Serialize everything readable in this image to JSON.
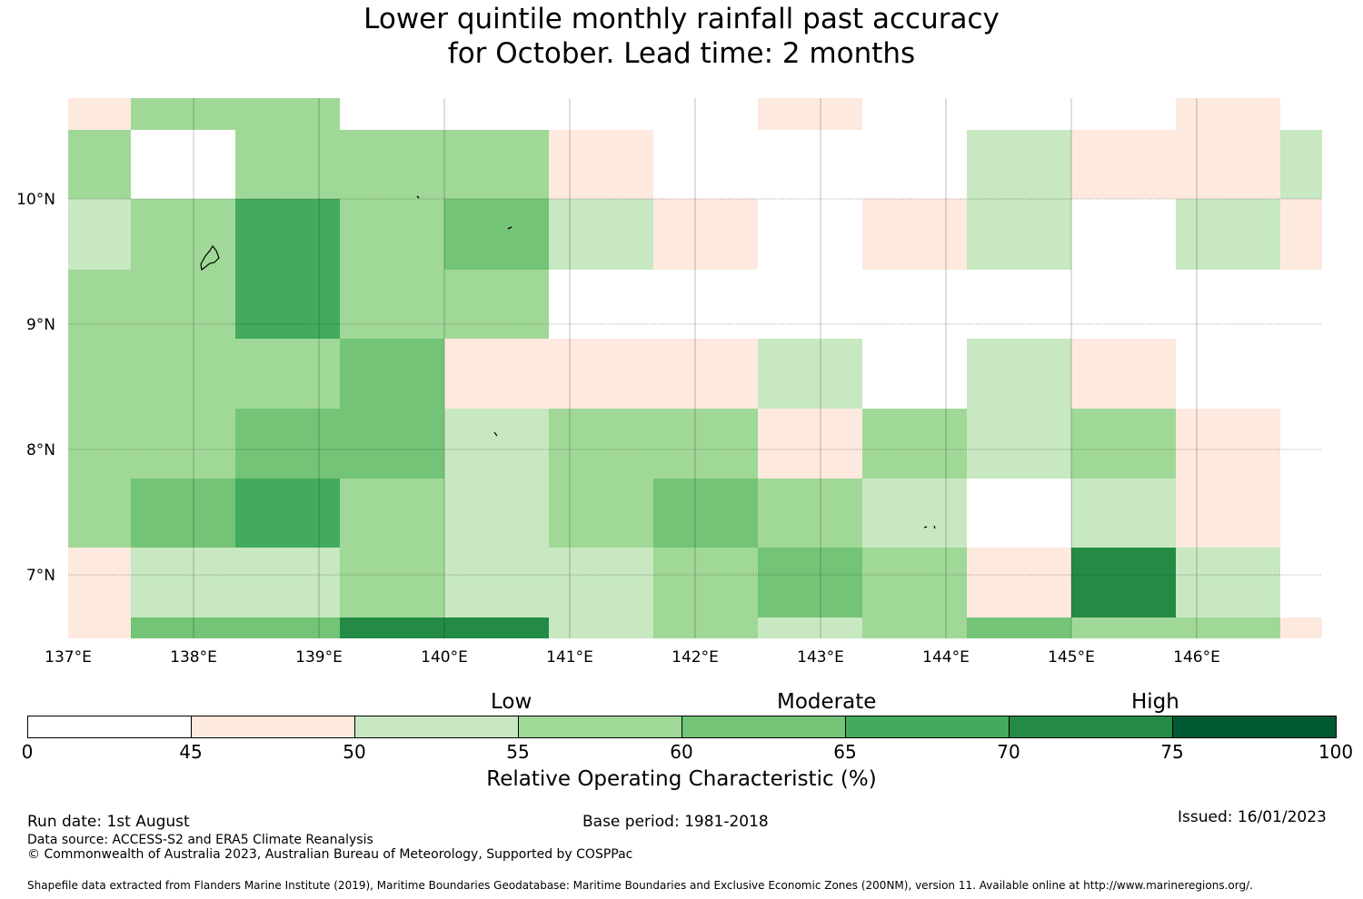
{
  "title": {
    "line1": "Lower quintile monthly rainfall past accuracy",
    "line2": "for October. Lead time: 2 months"
  },
  "map": {
    "lon_labels": [
      "137°E",
      "138°E",
      "139°E",
      "140°E",
      "141°E",
      "142°E",
      "143°E",
      "144°E",
      "145°E",
      "146°E"
    ],
    "lat_labels": [
      "10°N",
      "9°N",
      "8°N",
      "7°N"
    ],
    "category_colors": [
      "#ffffff",
      "#fee9df",
      "#c7e8c1",
      "#a0d897",
      "#73c476",
      "#42ab5d",
      "#238b45",
      "#005a32"
    ],
    "grid_cells_category": [
      [
        1,
        3,
        3,
        0,
        0,
        0,
        0,
        1,
        0,
        0,
        0,
        1,
        0
      ],
      [
        3,
        0,
        3,
        3,
        3,
        1,
        0,
        0,
        0,
        2,
        1,
        1,
        2
      ],
      [
        2,
        3,
        5,
        3,
        4,
        2,
        1,
        0,
        1,
        2,
        0,
        2,
        1
      ],
      [
        3,
        3,
        5,
        3,
        3,
        0,
        0,
        0,
        0,
        0,
        0,
        0,
        0
      ],
      [
        3,
        3,
        3,
        4,
        1,
        1,
        1,
        2,
        0,
        2,
        1,
        0,
        0
      ],
      [
        3,
        3,
        4,
        4,
        2,
        3,
        3,
        1,
        3,
        2,
        3,
        1,
        0
      ],
      [
        3,
        4,
        5,
        3,
        2,
        3,
        4,
        3,
        2,
        0,
        2,
        1,
        0
      ],
      [
        1,
        2,
        2,
        3,
        2,
        2,
        3,
        4,
        3,
        1,
        6,
        2,
        0
      ],
      [
        1,
        4,
        4,
        6,
        6,
        2,
        3,
        2,
        3,
        4,
        3,
        3,
        1
      ]
    ]
  },
  "colorbar": {
    "words": [
      "Low",
      "Moderate",
      "High"
    ],
    "ticks": [
      "0",
      "45",
      "50",
      "55",
      "60",
      "65",
      "70",
      "75",
      "100"
    ],
    "colors": [
      "#ffffff",
      "#fee9df",
      "#c7e8c1",
      "#a0d897",
      "#73c476",
      "#42ab5d",
      "#238b45",
      "#005a32"
    ],
    "label": "Relative Operating Characteristic (%)"
  },
  "footer": {
    "run_date": "Run date: 1st August",
    "base_period": "Base period: 1981-2018",
    "issued": "Issued: 16/01/2023",
    "data_source": "Data source: ACCESS-S2 and ERA5 Climate Reanalysis",
    "copyright": "© Commonwealth of Australia 2023, Australian Bureau of Meteorology, Supported by COSPPac",
    "shapefile": "Shapefile data extracted from Flanders Marine Institute (2019), Maritime Boundaries Geodatabase: Maritime Boundaries and Exclusive Economic Zones (200NM), version 11. Available online at http://www.marineregions.org/."
  }
}
